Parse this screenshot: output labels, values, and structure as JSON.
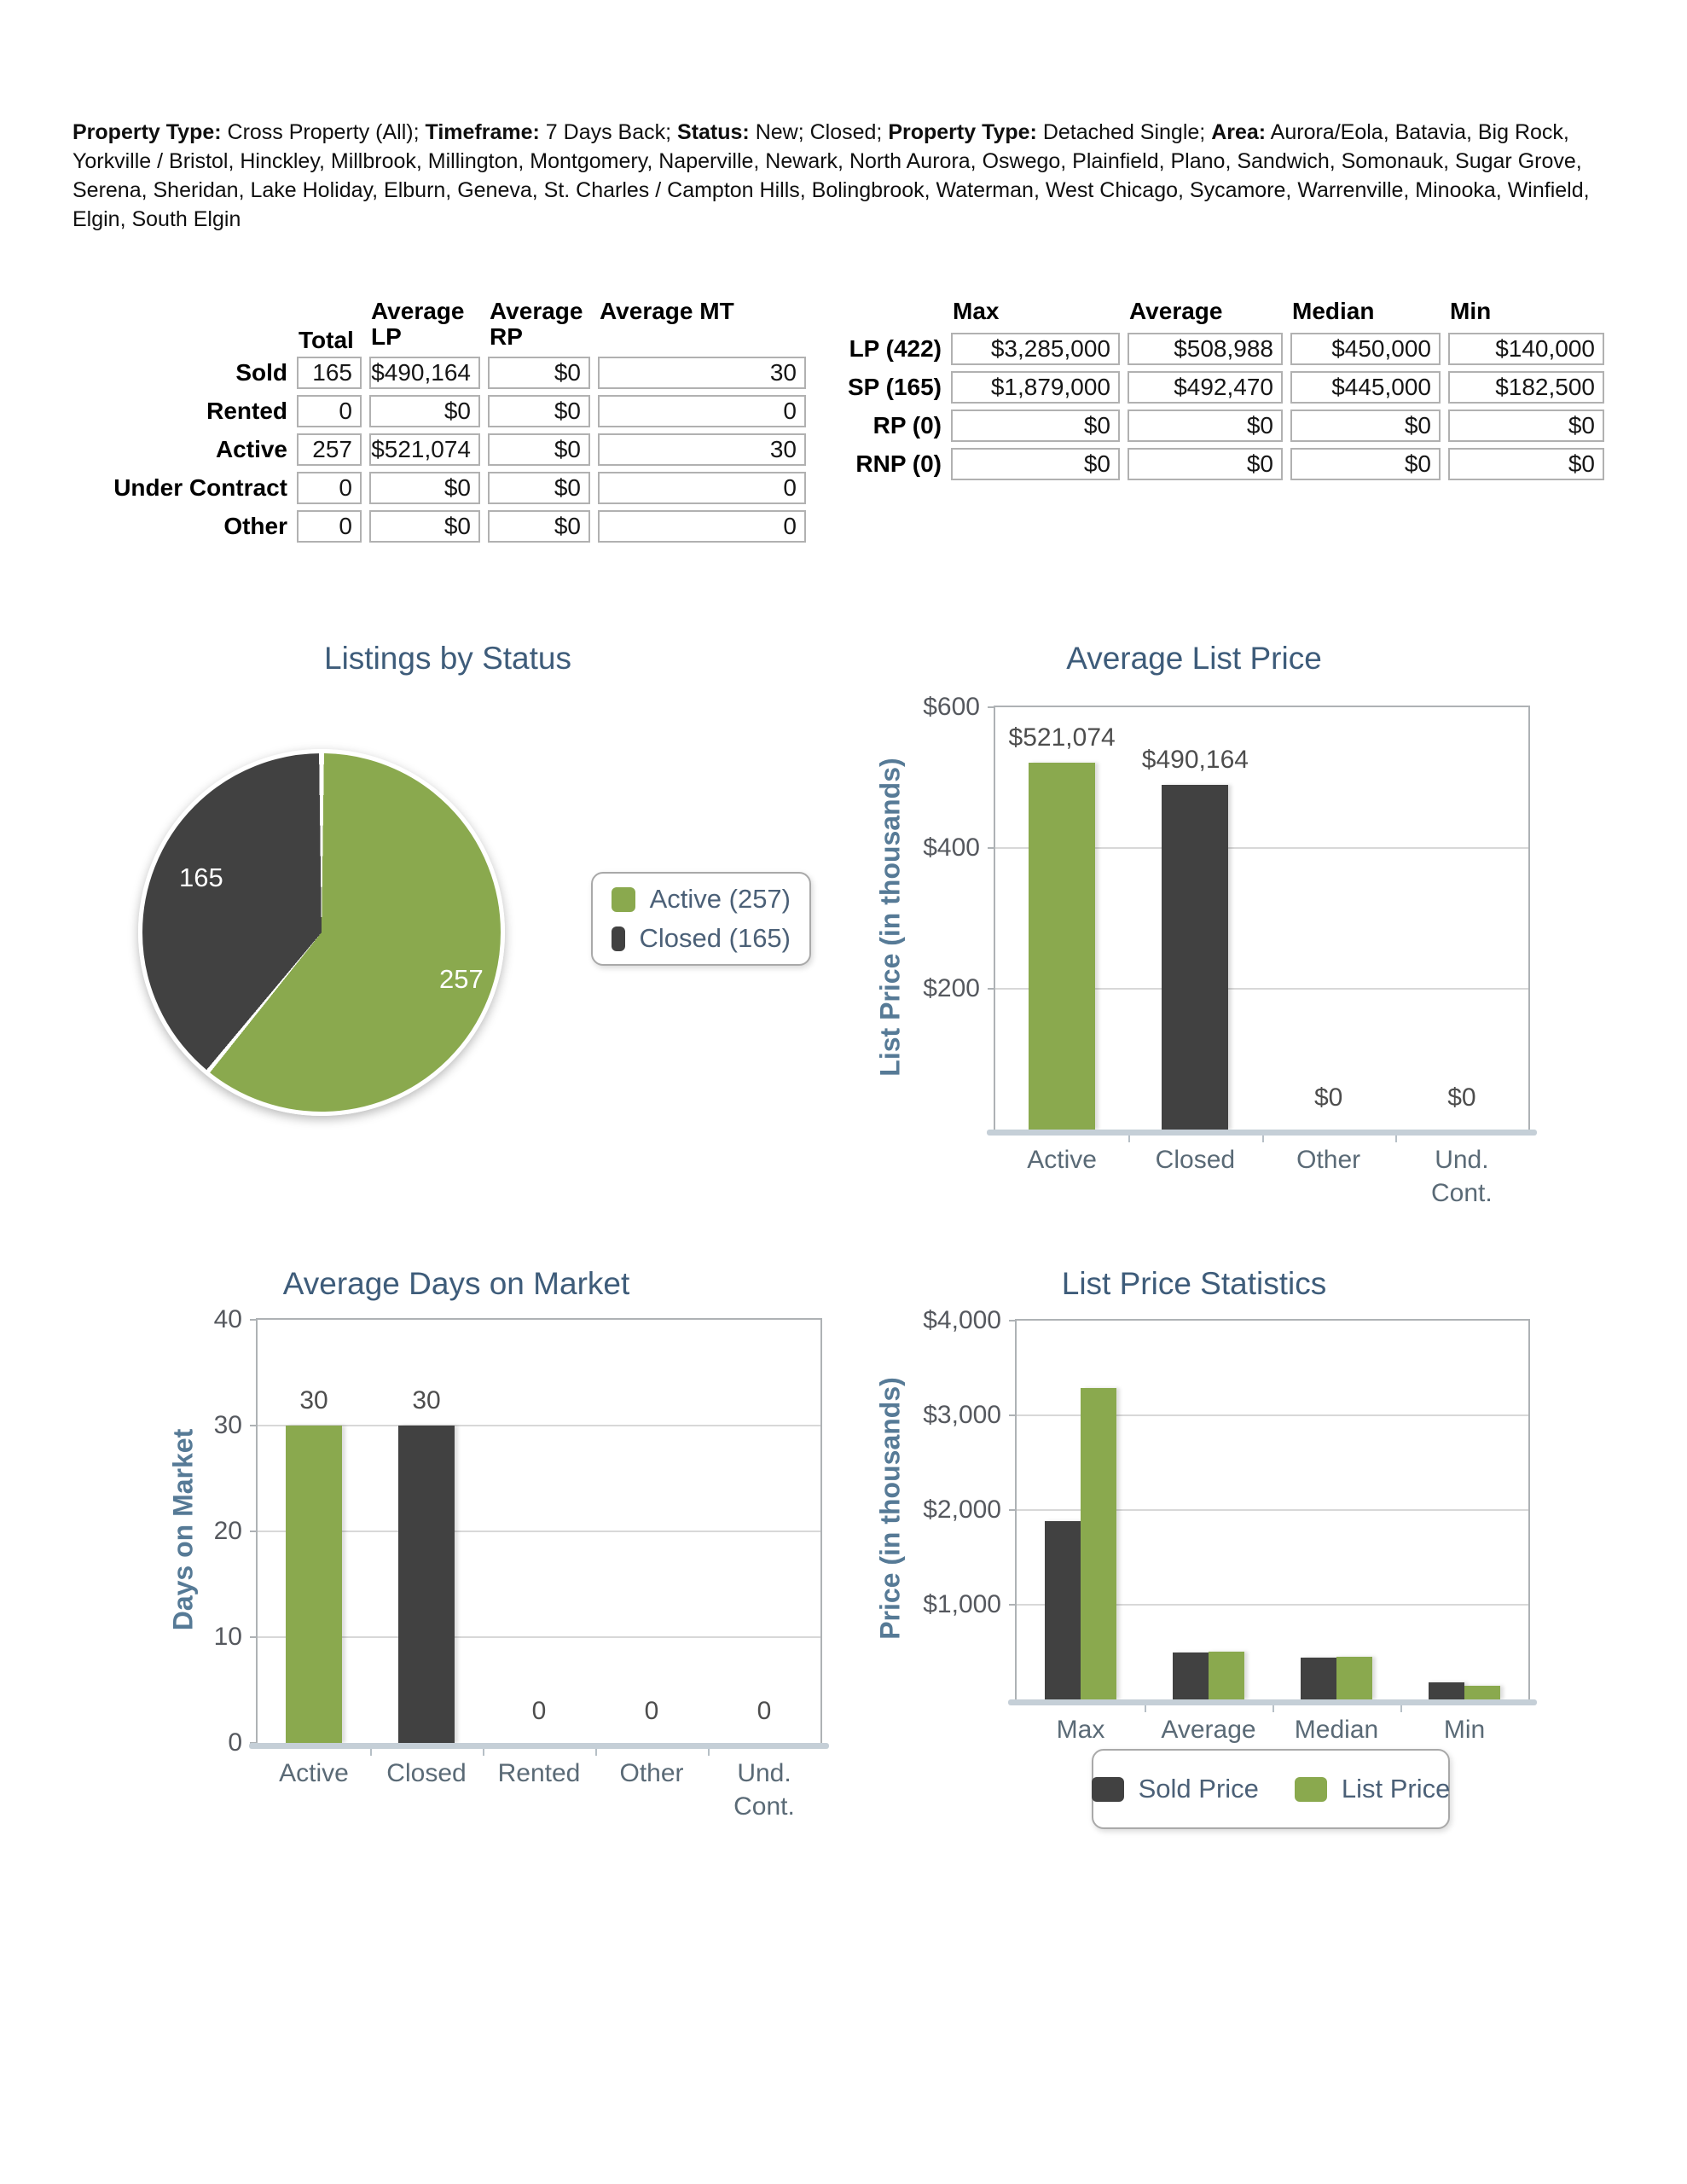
{
  "header": {
    "segments": [
      {
        "label": "Property Type:",
        "text": " Cross Property (All); "
      },
      {
        "label": "Timeframe:",
        "text": " 7 Days Back; "
      },
      {
        "label": "Status:",
        "text": " New; Closed; "
      },
      {
        "label": "Property Type:",
        "text": " Detached Single; "
      },
      {
        "label": "Area:",
        "text": " Aurora/Eola, Batavia, Big Rock, Yorkville / Bristol, Hinckley, Millbrook, Millington, Montgomery, Naperville, Newark, North Aurora, Oswego, Plainfield, Plano, Sandwich, Somonauk, Sugar Grove, Serena, Sheridan, Lake Holiday, Elburn, Geneva, St. Charles / Campton Hills, Bolingbrook, Waterman, West Chicago, Sycamore, Warrenville, Minooka, Winfield, Elgin, South Elgin"
      }
    ]
  },
  "colors": {
    "accent_green": "#8aa94e",
    "accent_dark": "#414141",
    "title_blue": "#3e5c7a",
    "axis_title_blue": "#567a96",
    "tick_gray": "#55585e",
    "legend_text": "#4b6077"
  },
  "summary_table": {
    "columns": [
      "Total",
      "Average LP",
      "Average RP",
      "Average MT"
    ],
    "rows": [
      {
        "label": "Sold",
        "values": [
          "165",
          "$490,164",
          "$0",
          "30"
        ]
      },
      {
        "label": "Rented",
        "values": [
          "0",
          "$0",
          "$0",
          "0"
        ]
      },
      {
        "label": "Active",
        "values": [
          "257",
          "$521,074",
          "$0",
          "30"
        ]
      },
      {
        "label": "Under Contract",
        "values": [
          "0",
          "$0",
          "$0",
          "0"
        ]
      },
      {
        "label": "Other",
        "values": [
          "0",
          "$0",
          "$0",
          "0"
        ]
      }
    ]
  },
  "stats_table": {
    "columns": [
      "Max",
      "Average",
      "Median",
      "Min"
    ],
    "rows": [
      {
        "label": "LP (422)",
        "values": [
          "$3,285,000",
          "$508,988",
          "$450,000",
          "$140,000"
        ]
      },
      {
        "label": "SP (165)",
        "values": [
          "$1,879,000",
          "$492,470",
          "$445,000",
          "$182,500"
        ]
      },
      {
        "label": "RP (0)",
        "values": [
          "$0",
          "$0",
          "$0",
          "$0"
        ]
      },
      {
        "label": "RNP (0)",
        "values": [
          "$0",
          "$0",
          "$0",
          "$0"
        ]
      }
    ]
  },
  "chart_data": [
    {
      "id": "listings-by-status",
      "type": "pie",
      "title": "Listings by Status",
      "slices": [
        {
          "label": "Active",
          "value": 257,
          "display": "257",
          "color": "#8aa94e"
        },
        {
          "label": "Closed",
          "value": 165,
          "display": "165",
          "color": "#414141"
        }
      ],
      "legend": [
        {
          "label": "Active (257)",
          "color": "#8aa94e"
        },
        {
          "label": "Closed (165)",
          "color": "#414141"
        }
      ],
      "legend_position": "right"
    },
    {
      "id": "average-list-price",
      "type": "bar",
      "title": "Average List Price",
      "ylabel": "List Price (in thousands)",
      "ylim": [
        0,
        600
      ],
      "yticks": [
        {
          "value": 600,
          "label": "$600"
        },
        {
          "value": 400,
          "label": "$400"
        },
        {
          "value": 200,
          "label": "$200"
        }
      ],
      "categories": [
        "Active",
        "Closed",
        "Other",
        "Und.\nCont."
      ],
      "values": [
        521.074,
        490.164,
        0,
        0
      ],
      "bar_value_labels": [
        "$521,074",
        "$490,164",
        "$0",
        "$0"
      ],
      "bar_colors": [
        "#8aa94e",
        "#414141",
        "#8aa94e",
        "#414141"
      ],
      "grid": true
    },
    {
      "id": "average-days-on-market",
      "type": "bar",
      "title": "Average Days on Market",
      "ylabel": "Days on Market",
      "ylim": [
        0,
        40
      ],
      "yticks": [
        {
          "value": 40,
          "label": "40"
        },
        {
          "value": 30,
          "label": "30"
        },
        {
          "value": 20,
          "label": "20"
        },
        {
          "value": 10,
          "label": "10"
        },
        {
          "value": 0,
          "label": "0"
        }
      ],
      "categories": [
        "Active",
        "Closed",
        "Rented",
        "Other",
        "Und.\nCont."
      ],
      "values": [
        30,
        30,
        0,
        0,
        0
      ],
      "bar_value_labels": [
        "30",
        "30",
        "0",
        "0",
        "0"
      ],
      "bar_colors": [
        "#8aa94e",
        "#414141",
        "#8aa94e",
        "#414141",
        "#8aa94e"
      ],
      "grid": true
    },
    {
      "id": "list-price-statistics",
      "type": "grouped_bar",
      "title": "List Price Statistics",
      "ylabel": "Price (in thousands)",
      "ylim": [
        0,
        4000
      ],
      "yticks": [
        {
          "value": 4000,
          "label": "$4,000"
        },
        {
          "value": 3000,
          "label": "$3,000"
        },
        {
          "value": 2000,
          "label": "$2,000"
        },
        {
          "value": 1000,
          "label": "$1,000"
        }
      ],
      "categories": [
        "Max",
        "Average",
        "Median",
        "Min"
      ],
      "series": [
        {
          "name": "Sold Price",
          "color": "#414141",
          "values": [
            1879,
            492.47,
            445,
            182.5
          ]
        },
        {
          "name": "List Price",
          "color": "#8aa94e",
          "values": [
            3285,
            508.988,
            450,
            140
          ]
        }
      ],
      "legend_position": "bottom",
      "grid": true
    }
  ]
}
